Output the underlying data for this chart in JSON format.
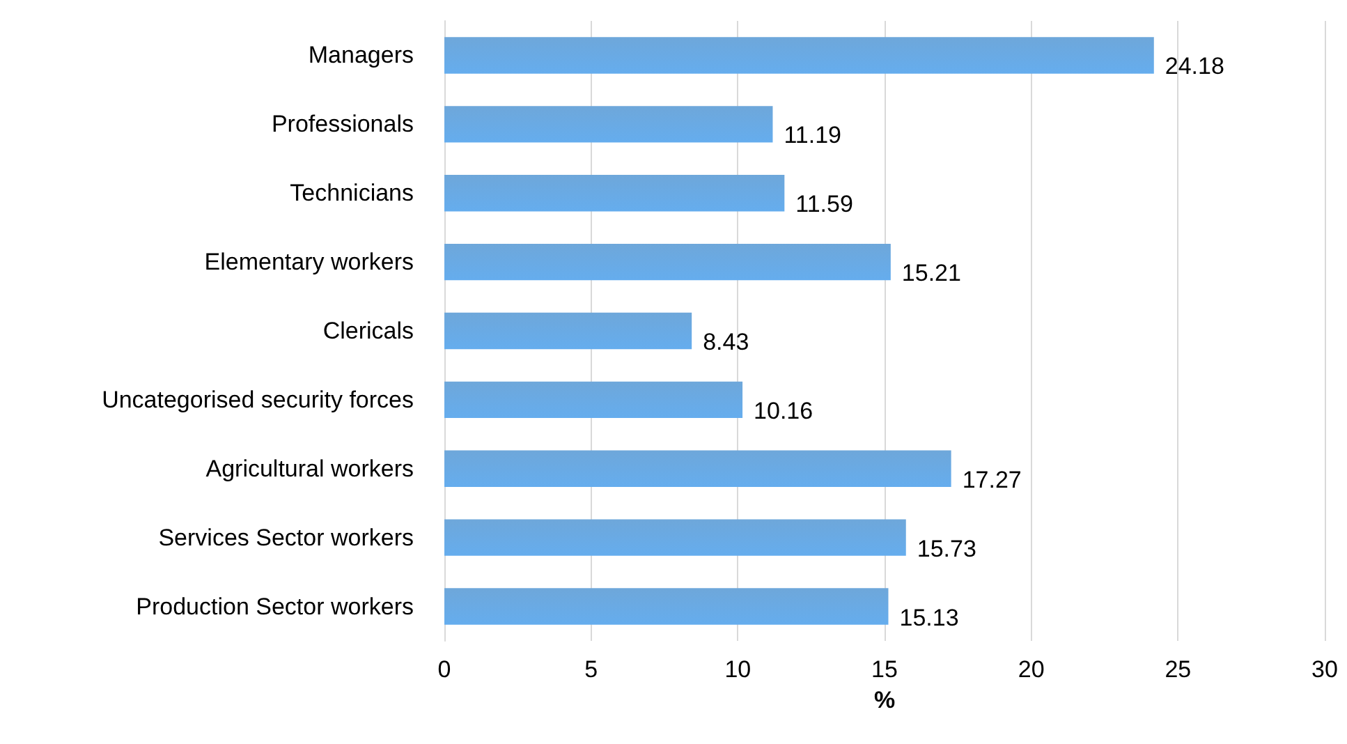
{
  "chart_data": {
    "type": "bar",
    "orientation": "horizontal",
    "xlabel": "%",
    "categories": [
      "Managers",
      "Professionals",
      "Technicians",
      "Elementary workers",
      "Clericals",
      "Uncategorised security forces",
      "Agricultural workers",
      "Services Sector workers",
      "Production Sector workers"
    ],
    "values": [
      24.18,
      11.19,
      11.59,
      15.21,
      8.43,
      10.16,
      17.27,
      15.73,
      15.13
    ],
    "color": "#5b9bd5",
    "data_labels": true,
    "grid": "x",
    "xlim": [
      0,
      30
    ],
    "xticks": [
      0,
      5,
      10,
      15,
      20,
      25,
      30
    ]
  }
}
